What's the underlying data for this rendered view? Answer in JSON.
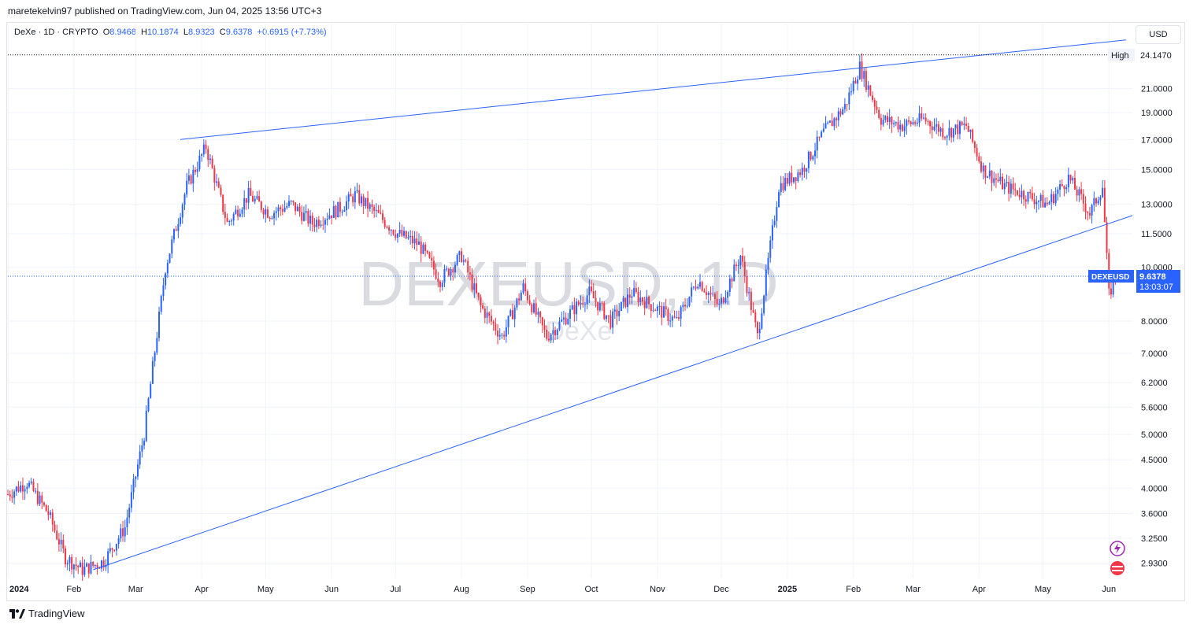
{
  "header": {
    "text": "maretekelvin97 published on TradingView.com, Jun 04, 2025 13:56 UTC+3"
  },
  "legend": {
    "symbol": "DeXe · 1D · CRYPTO",
    "open_label": "O",
    "open": "8.9468",
    "high_label": "H",
    "high": "10.1874",
    "low_label": "L",
    "low": "8.9323",
    "close_label": "C",
    "close": "9.6378",
    "change": "+0.6915 (+7.73%)"
  },
  "currency_button": "USD",
  "watermark": {
    "symbol": "DEXEUSD, 1D",
    "name": "DeXe"
  },
  "footer": {
    "brand": "TradingView"
  },
  "colors": {
    "up": "#2962ff",
    "down": "#f23645",
    "trendline": "#2962ff",
    "price_line": "#2962ff"
  },
  "chart_data": {
    "type": "candlestick",
    "scale": "log",
    "ylim": [
      2.75,
      27.5
    ],
    "price_ticks": [
      "2.9300",
      "3.2500",
      "3.6000",
      "4.0000",
      "4.5000",
      "5.0000",
      "5.6000",
      "6.2000",
      "7.0000",
      "8.0000",
      "10.0000",
      "11.5000",
      "13.0000",
      "15.0000",
      "17.0000",
      "19.0000",
      "21.0000"
    ],
    "x_labels": [
      "2024",
      "Feb",
      "Mar",
      "Apr",
      "May",
      "Jun",
      "Jul",
      "Aug",
      "Sep",
      "Oct",
      "Nov",
      "Dec",
      "2025",
      "Feb",
      "Mar",
      "Apr",
      "May",
      "Jun"
    ],
    "high_label": {
      "text": "High",
      "value": "24.1470"
    },
    "last_price": {
      "symbol": "DEXEUSD",
      "value": "9.6378",
      "countdown": "13:03:07"
    },
    "series_path": [
      [
        "2024-01-01",
        3.9
      ],
      [
        "2024-01-10",
        4.1
      ],
      [
        "2024-01-20",
        3.6
      ],
      [
        "2024-01-28",
        3.0
      ],
      [
        "2024-02-05",
        2.85
      ],
      [
        "2024-02-15",
        2.95
      ],
      [
        "2024-02-25",
        3.4
      ],
      [
        "2024-03-05",
        5.0
      ],
      [
        "2024-03-15",
        10.0
      ],
      [
        "2024-03-25",
        14.0
      ],
      [
        "2024-04-03",
        16.5
      ],
      [
        "2024-04-13",
        12.0
      ],
      [
        "2024-04-23",
        13.5
      ],
      [
        "2024-05-03",
        12.5
      ],
      [
        "2024-05-13",
        13.0
      ],
      [
        "2024-05-23",
        12.0
      ],
      [
        "2024-06-05",
        12.8
      ],
      [
        "2024-06-12",
        13.5
      ],
      [
        "2024-06-22",
        12.5
      ],
      [
        "2024-07-02",
        11.5
      ],
      [
        "2024-07-12",
        11.0
      ],
      [
        "2024-07-22",
        9.5
      ],
      [
        "2024-08-01",
        10.5
      ],
      [
        "2024-08-10",
        8.5
      ],
      [
        "2024-08-20",
        7.5
      ],
      [
        "2024-08-30",
        9.2
      ],
      [
        "2024-09-10",
        7.5
      ],
      [
        "2024-09-20",
        8.2
      ],
      [
        "2024-09-30",
        9.0
      ],
      [
        "2024-10-10",
        8.0
      ],
      [
        "2024-10-20",
        9.0
      ],
      [
        "2024-10-30",
        8.5
      ],
      [
        "2024-11-10",
        8.0
      ],
      [
        "2024-11-20",
        9.5
      ],
      [
        "2024-11-30",
        8.5
      ],
      [
        "2024-12-10",
        10.5
      ],
      [
        "2024-12-18",
        7.5
      ],
      [
        "2024-12-28",
        14.0
      ],
      [
        "2025-01-08",
        15.0
      ],
      [
        "2025-01-18",
        17.5
      ],
      [
        "2025-01-28",
        19.5
      ],
      [
        "2025-02-04",
        23.0
      ],
      [
        "2025-02-14",
        18.5
      ],
      [
        "2025-02-24",
        18.0
      ],
      [
        "2025-03-06",
        18.5
      ],
      [
        "2025-03-16",
        17.5
      ],
      [
        "2025-03-26",
        18.0
      ],
      [
        "2025-04-03",
        15.0
      ],
      [
        "2025-04-13",
        14.0
      ],
      [
        "2025-04-23",
        13.5
      ],
      [
        "2025-05-03",
        13.0
      ],
      [
        "2025-05-13",
        14.5
      ],
      [
        "2025-05-23",
        12.5
      ],
      [
        "2025-05-29",
        14.0
      ],
      [
        "2025-06-01",
        8.9
      ],
      [
        "2025-06-04",
        9.64
      ]
    ],
    "trendlines": [
      {
        "from": [
          "2024-03-22",
          17.0
        ],
        "to": [
          "2025-06-09",
          25.7
        ]
      },
      {
        "from": [
          "2024-02-10",
          2.85
        ],
        "to": [
          "2025-06-12",
          12.4
        ]
      }
    ]
  }
}
